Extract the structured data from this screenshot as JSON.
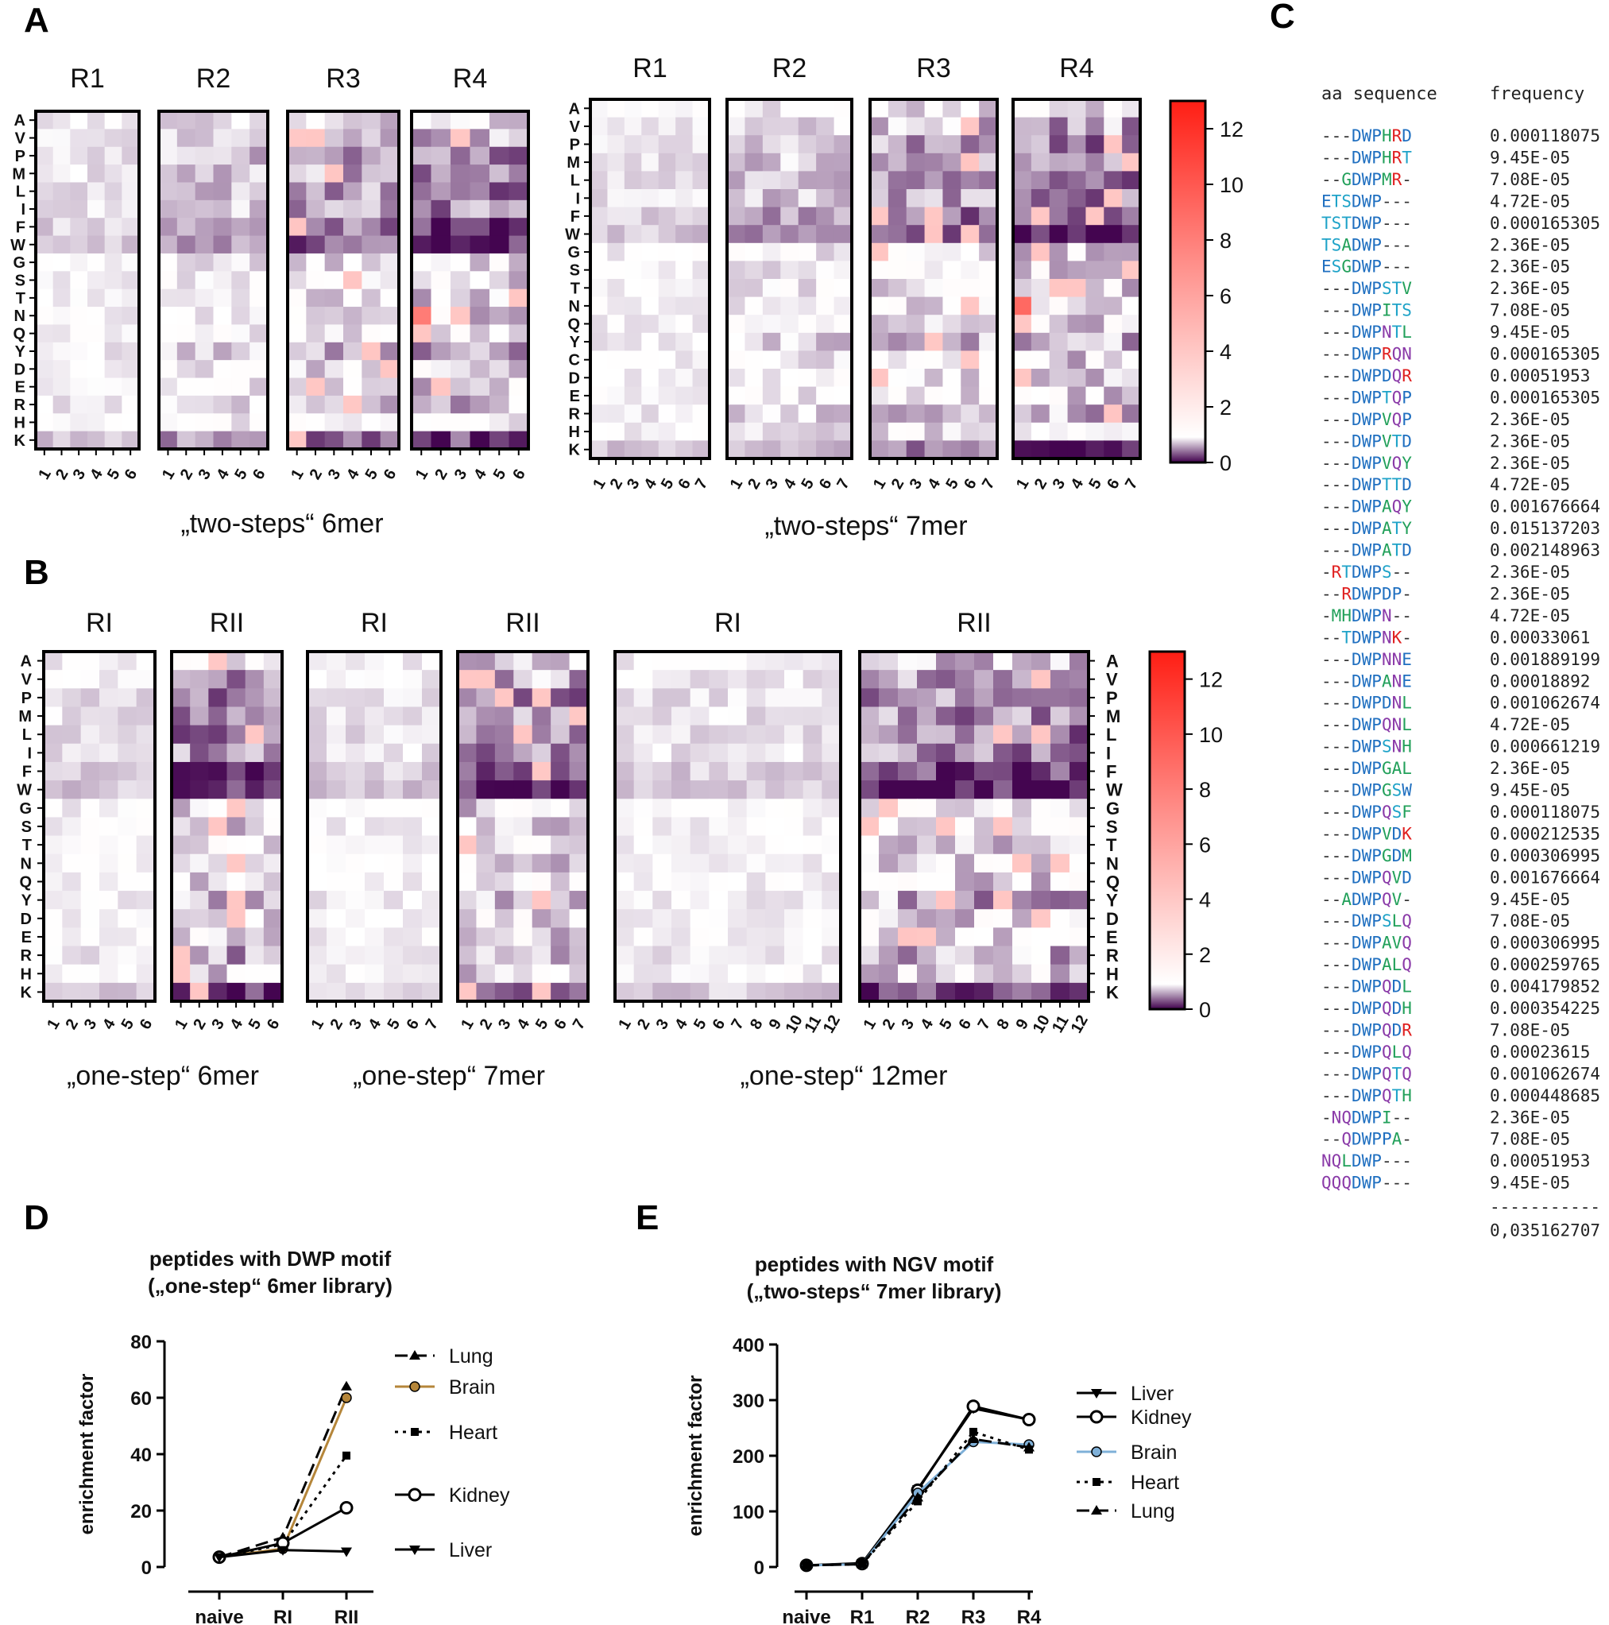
{
  "panel_letters": [
    "A",
    "B",
    "C",
    "D",
    "E"
  ],
  "residues": [
    "A",
    "V",
    "P",
    "M",
    "L",
    "I",
    "F",
    "W",
    "G",
    "S",
    "T",
    "N",
    "Q",
    "Y",
    "C",
    "D",
    "E",
    "R",
    "H",
    "K"
  ],
  "colorbar_ticks": [
    "0",
    "2",
    "4",
    "6",
    "8",
    "10",
    "12"
  ],
  "captions": {
    "a_left": "„two-steps“ 6mer",
    "a_right": "„two-steps“ 7mer",
    "b_left": "„one-step“ 6mer",
    "b_mid": "„one-step“ 7mer",
    "b_right": "„one-step“ 12mer"
  },
  "round_labels": {
    "two_steps": [
      "R1",
      "R2",
      "R3",
      "R4"
    ],
    "one_step": [
      "RI",
      "RII"
    ]
  },
  "sequence_table": {
    "header_seq": "aa sequence",
    "header_freq": "frequency",
    "rows": [
      [
        "---DWPHRD",
        "0.000118075"
      ],
      [
        "---DWPHRT",
        "9.45E-05"
      ],
      [
        "--GDWPMR-",
        "7.08E-05"
      ],
      [
        "ETSDWP---",
        "4.72E-05"
      ],
      [
        "TSTDWP---",
        "0.000165305"
      ],
      [
        "TSADWP---",
        "2.36E-05"
      ],
      [
        "ESGDWP---",
        "2.36E-05"
      ],
      [
        "---DWPSTV",
        "2.36E-05"
      ],
      [
        "---DWPITS",
        "7.08E-05"
      ],
      [
        "---DWPNTL",
        "9.45E-05"
      ],
      [
        "---DWPRQN",
        "0.000165305"
      ],
      [
        "---DWPDQR",
        "0.00051953"
      ],
      [
        "---DWPTQP",
        "0.000165305"
      ],
      [
        "---DWPVQP",
        "2.36E-05"
      ],
      [
        "---DWPVTD",
        "2.36E-05"
      ],
      [
        "---DWPVQY",
        "2.36E-05"
      ],
      [
        "---DWPTTD",
        "4.72E-05"
      ],
      [
        "---DWPAQY",
        "0.001676664"
      ],
      [
        "---DWPATY",
        "0.015137203"
      ],
      [
        "---DWPATD",
        "0.002148963"
      ],
      [
        "-RTDWPS--",
        "2.36E-05"
      ],
      [
        "--RDWPDP-",
        "2.36E-05"
      ],
      [
        "-MHDWPN--",
        "4.72E-05"
      ],
      [
        "--TDWPNK-",
        "0.00033061"
      ],
      [
        "---DWPNNE",
        "0.001889199"
      ],
      [
        "---DWPANE",
        "0.00018892"
      ],
      [
        "---DWPDNL",
        "0.001062674"
      ],
      [
        "---DWPQNL",
        "4.72E-05"
      ],
      [
        "---DWPSNH",
        "0.000661219"
      ],
      [
        "---DWPGAL",
        "2.36E-05"
      ],
      [
        "---DWPGSW",
        "9.45E-05"
      ],
      [
        "---DWPQSF",
        "0.000118075"
      ],
      [
        "---DWPVDK",
        "0.000212535"
      ],
      [
        "---DWPGDM",
        "0.000306995"
      ],
      [
        "---DWPQVD",
        "0.001676664"
      ],
      [
        "--ADWPQV-",
        "9.45E-05"
      ],
      [
        "---DWPSLQ",
        "7.08E-05"
      ],
      [
        "---DWPAVQ",
        "0.000306995"
      ],
      [
        "---DWPALQ",
        "0.000259765"
      ],
      [
        "---DWPQDL",
        "0.004179852"
      ],
      [
        "---DWPQDH",
        "0.000354225"
      ],
      [
        "---DWPQDR",
        "7.08E-05"
      ],
      [
        "---DWPQLQ",
        "0.00023615"
      ],
      [
        "---DWPQTQ",
        "0.001062674"
      ],
      [
        "---DWPQTH",
        "0.000448685"
      ],
      [
        "-NQDWPI--",
        "2.36E-05"
      ],
      [
        "--QDWPPA-",
        "7.08E-05"
      ],
      [
        "NQLDWP---",
        "0.00051953"
      ],
      [
        "QQQDWP---",
        "9.45E-05"
      ]
    ],
    "dashes": "-----------",
    "total": "0,035162707"
  },
  "aa_colors": {
    "D": "#1f6fc0",
    "W": "#1f6fc0",
    "P": "#1f6fc0",
    "E": "#1f6fc0",
    "T": "#1fa3c8",
    "S": "#1fa3c8",
    "H": "#22a05a",
    "G": "#22a05a",
    "A": "#22a05a",
    "V": "#22a05a",
    "I": "#22a05a",
    "L": "#22a05a",
    "M": "#22a05a",
    "F": "#22a05a",
    "Y": "#22a05a",
    "N": "#8a3aa8",
    "Q": "#8a3aa8",
    "R": "#e02020",
    "K": "#e02020",
    "-": "#333333"
  },
  "chart_data": [
    {
      "type": "heatmap",
      "id": "A-two-steps-6mer",
      "groups": [
        "R1",
        "R2",
        "R3",
        "R4"
      ],
      "positions": [
        "1",
        "2",
        "3",
        "4",
        "5",
        "6"
      ],
      "rows": [
        "A",
        "V",
        "P",
        "M",
        "L",
        "I",
        "F",
        "W",
        "G",
        "S",
        "T",
        "N",
        "Q",
        "Y",
        "D",
        "E",
        "R",
        "H",
        "K"
      ],
      "caption": "„two-steps“ 6mer",
      "value_range": [
        0,
        13
      ],
      "hotspots": [
        {
          "group": "R4",
          "position": "1",
          "row": "N",
          "value": 8
        }
      ]
    },
    {
      "type": "heatmap",
      "id": "A-two-steps-7mer",
      "groups": [
        "R1",
        "R2",
        "R3",
        "R4"
      ],
      "positions": [
        "1",
        "2",
        "3",
        "4",
        "5",
        "6",
        "7"
      ],
      "rows": [
        "A",
        "V",
        "P",
        "M",
        "L",
        "I",
        "F",
        "W",
        "G",
        "S",
        "T",
        "N",
        "Q",
        "Y",
        "C",
        "D",
        "E",
        "R",
        "H",
        "K"
      ],
      "caption": "„two-steps“ 7mer",
      "colorbar_ticks": [
        0,
        2,
        4,
        6,
        8,
        10,
        12
      ],
      "value_range": [
        0,
        13
      ],
      "hotspots": [
        {
          "group": "R4",
          "position": "1",
          "row": "N",
          "value": 9
        }
      ]
    },
    {
      "type": "heatmap",
      "id": "B-one-step-6mer",
      "groups": [
        "RI",
        "RII"
      ],
      "positions": [
        "1",
        "2",
        "3",
        "4",
        "5",
        "6"
      ],
      "rows": [
        "A",
        "V",
        "P",
        "M",
        "L",
        "I",
        "F",
        "W",
        "G",
        "S",
        "T",
        "N",
        "Q",
        "Y",
        "D",
        "E",
        "R",
        "H",
        "K"
      ],
      "caption": "„one-step“ 6mer",
      "value_range": [
        0,
        13
      ]
    },
    {
      "type": "heatmap",
      "id": "B-one-step-7mer",
      "groups": [
        "RI",
        "RII"
      ],
      "positions": [
        "1",
        "2",
        "3",
        "4",
        "5",
        "6",
        "7"
      ],
      "rows": [
        "A",
        "V",
        "P",
        "M",
        "L",
        "I",
        "F",
        "W",
        "G",
        "S",
        "T",
        "N",
        "Q",
        "Y",
        "D",
        "E",
        "R",
        "H",
        "K"
      ],
      "caption": "„one-step“ 7mer",
      "value_range": [
        0,
        13
      ]
    },
    {
      "type": "heatmap",
      "id": "B-one-step-12mer",
      "groups": [
        "RI",
        "RII"
      ],
      "positions": [
        "1",
        "2",
        "3",
        "4",
        "5",
        "6",
        "7",
        "8",
        "9",
        "10",
        "11",
        "12"
      ],
      "rows": [
        "A",
        "V",
        "P",
        "M",
        "L",
        "I",
        "F",
        "W",
        "G",
        "S",
        "T",
        "N",
        "Q",
        "Y",
        "D",
        "E",
        "R",
        "H",
        "K"
      ],
      "caption": "„one-step“ 12mer",
      "colorbar_ticks": [
        0,
        2,
        4,
        6,
        8,
        10,
        12
      ],
      "value_range": [
        0,
        13
      ]
    },
    {
      "type": "line",
      "id": "D",
      "title": [
        "peptides with DWP motif",
        "(„one-step“ 6mer library)"
      ],
      "ylabel": "enrichment factor",
      "categories": [
        "naive",
        "RI",
        "RII"
      ],
      "ylim": [
        0,
        80
      ],
      "yticks": [
        0,
        20,
        40,
        60,
        80
      ],
      "series": [
        {
          "name": "Lung",
          "values": [
            3.5,
            10.5,
            64
          ],
          "dash": "dash",
          "marker": "triangle-up",
          "color": "#000000"
        },
        {
          "name": "Brain",
          "values": [
            3.5,
            6.5,
            60
          ],
          "dash": "solid",
          "marker": "circle",
          "color": "#b5863a"
        },
        {
          "name": "Heart",
          "values": [
            3.5,
            8,
            39.5
          ],
          "dash": "dot",
          "marker": "square",
          "color": "#000000"
        },
        {
          "name": "Kidney",
          "values": [
            3.5,
            8.5,
            21
          ],
          "dash": "solid",
          "marker": "circle-open",
          "color": "#000000"
        },
        {
          "name": "Liver",
          "values": [
            3.5,
            6,
            5.5
          ],
          "dash": "solid",
          "marker": "triangle-down",
          "color": "#000000"
        }
      ]
    },
    {
      "type": "line",
      "id": "E",
      "title": [
        "peptides with NGV motif",
        "(„two-steps“ 7mer library)"
      ],
      "ylabel": "enrichment factor",
      "categories": [
        "naive",
        "R1",
        "R2",
        "R3",
        "R4"
      ],
      "ylim": [
        0,
        400
      ],
      "yticks": [
        0,
        100,
        200,
        300,
        400
      ],
      "series": [
        {
          "name": "Liver",
          "values": [
            3,
            7,
            140,
            285,
            265
          ],
          "dash": "solid",
          "marker": "triangle-down",
          "color": "#000000"
        },
        {
          "name": "Kidney",
          "values": [
            3,
            6,
            138,
            289,
            265
          ],
          "dash": "solid",
          "marker": "circle-open",
          "color": "#000000"
        },
        {
          "name": "Brain",
          "values": [
            3,
            5,
            133,
            225,
            220
          ],
          "dash": "solid",
          "marker": "circle",
          "color": "#7fb0d8"
        },
        {
          "name": "Heart",
          "values": [
            3,
            5,
            118,
            243,
            211
          ],
          "dash": "dot",
          "marker": "square",
          "color": "#000000"
        },
        {
          "name": "Lung",
          "values": [
            3,
            5,
            125,
            230,
            215
          ],
          "dash": "dash",
          "marker": "triangle-up",
          "color": "#000000"
        }
      ]
    }
  ]
}
